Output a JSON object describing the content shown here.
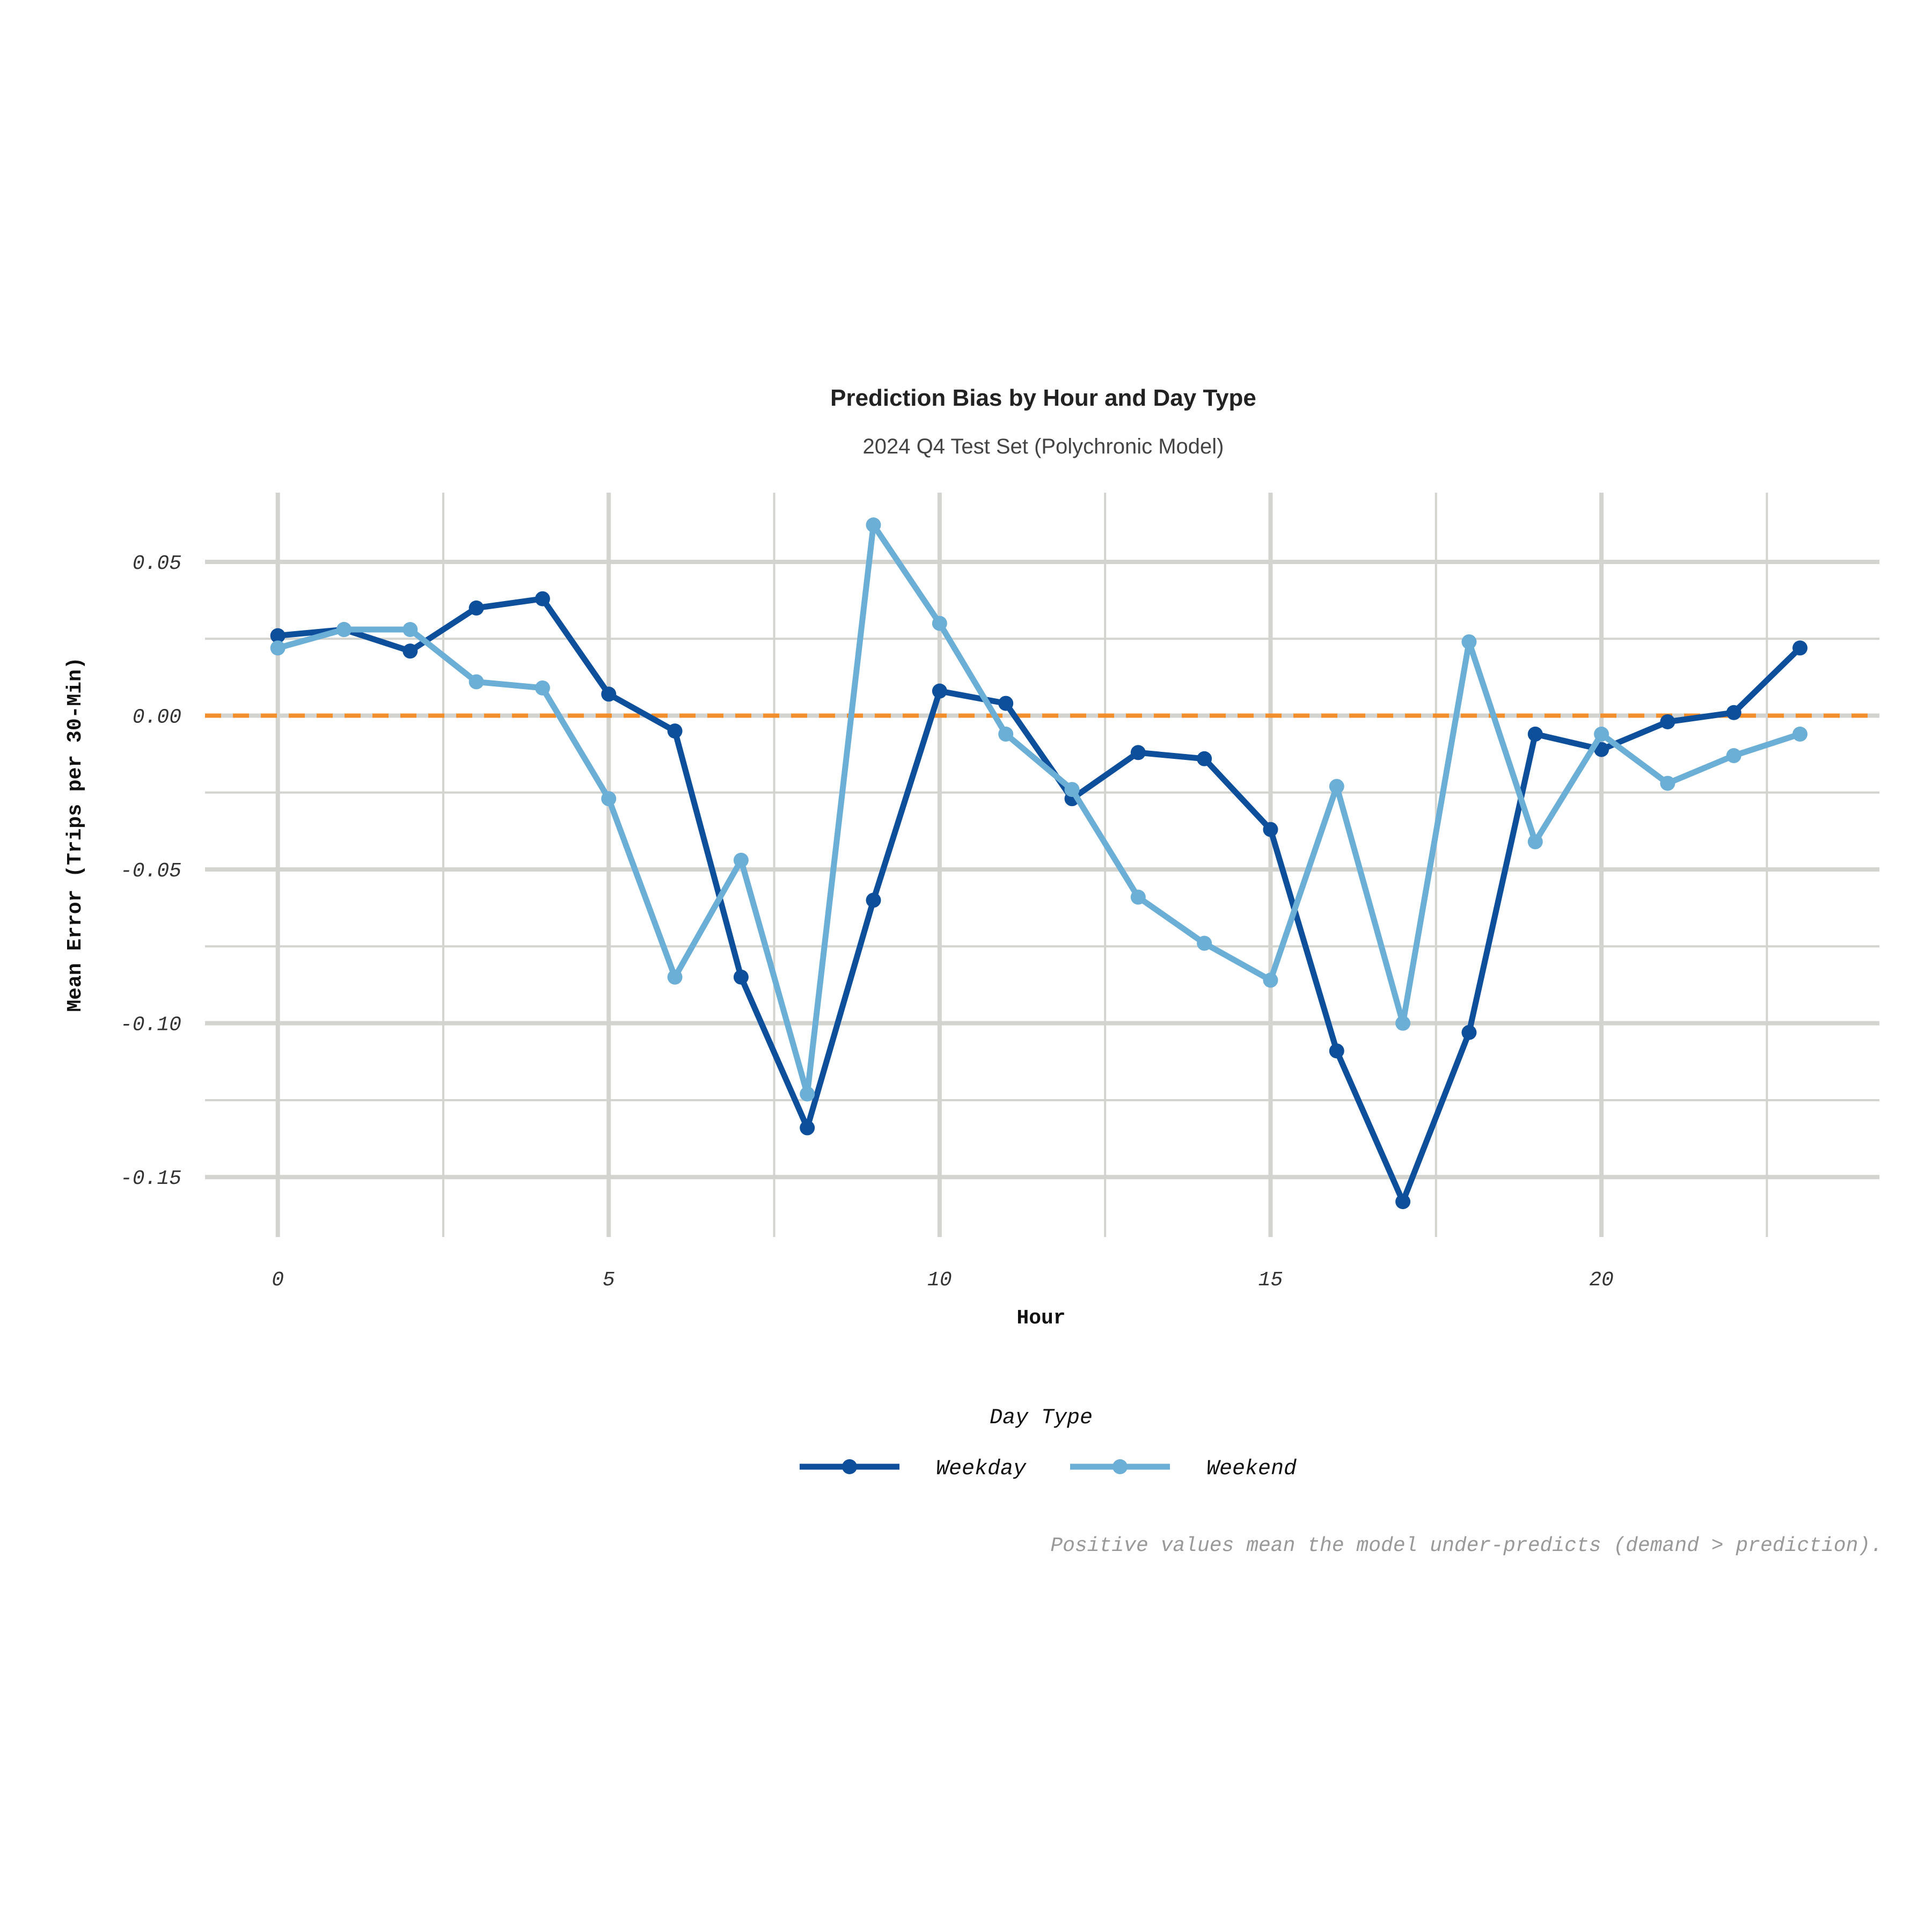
{
  "chart_data": {
    "type": "line",
    "title": "Prediction Bias by Hour and Day Type",
    "subtitle": "2024 Q4 Test Set (Polychronic Model)",
    "xlabel": "Hour",
    "ylabel": "Mean Error (Trips per 30-Min)",
    "caption": "Positive values mean the model under-predicts (demand > prediction).",
    "legend_title": "Day Type",
    "legend_position": "bottom",
    "xlim": [
      -1.1,
      24.2
    ],
    "ylim": [
      -0.1695,
      0.0725
    ],
    "x_ticks": [
      0,
      5,
      10,
      15,
      20
    ],
    "x_tick_labels": [
      "0",
      "5",
      "10",
      "15",
      "20"
    ],
    "y_ticks": [
      0.05,
      0.0,
      -0.05,
      -0.1,
      -0.15
    ],
    "y_tick_labels": [
      "0.05",
      "0.00",
      "-0.05",
      "-0.10",
      "-0.15"
    ],
    "reference_line": {
      "y": 0,
      "style": "dashed",
      "color": "#F28E2B"
    },
    "grid": true,
    "x": [
      0,
      1,
      2,
      3,
      4,
      5,
      6,
      7,
      8,
      9,
      10,
      11,
      12,
      13,
      14,
      15,
      16,
      17,
      18,
      19,
      20,
      21,
      22,
      23
    ],
    "series": [
      {
        "name": "Weekday",
        "color": "#0D4F9A",
        "values": [
          0.026,
          0.028,
          0.021,
          0.035,
          0.038,
          0.007,
          -0.005,
          -0.085,
          -0.134,
          -0.06,
          0.008,
          0.004,
          -0.027,
          -0.012,
          -0.014,
          -0.037,
          -0.109,
          -0.158,
          -0.103,
          -0.006,
          -0.011,
          -0.002,
          0.001,
          0.022
        ]
      },
      {
        "name": "Weekend",
        "color": "#6BAED6",
        "values": [
          0.022,
          0.028,
          0.028,
          0.011,
          0.009,
          -0.027,
          -0.085,
          -0.047,
          -0.123,
          0.062,
          0.03,
          -0.006,
          -0.024,
          -0.059,
          -0.074,
          -0.086,
          -0.023,
          -0.1,
          0.024,
          -0.041,
          -0.006,
          -0.022,
          -0.013,
          -0.006
        ]
      }
    ]
  }
}
